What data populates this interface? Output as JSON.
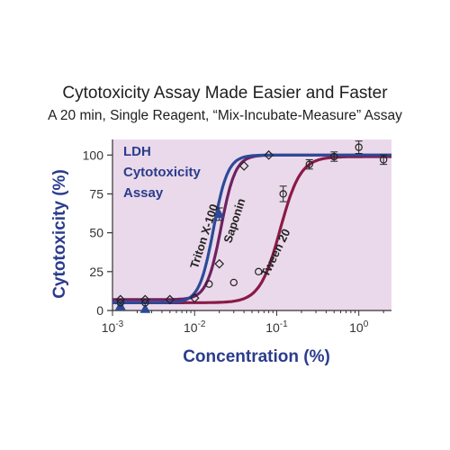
{
  "chart_data": {
    "type": "line",
    "title": "Cytotoxicity Assay Made Easier and Faster",
    "subtitle": "A 20 min, Single Reagent, “Mix-Incubate-Measure” Assay",
    "xlabel": "Concentration (%)",
    "ylabel": "Cytotoxicity (%)",
    "x_scale": "log",
    "xlim": [
      0.001,
      2.5
    ],
    "ylim": [
      0,
      110
    ],
    "x_ticks": [
      {
        "value": 0.001,
        "base": "10",
        "exp": "-3"
      },
      {
        "value": 0.01,
        "base": "10",
        "exp": "-2"
      },
      {
        "value": 0.1,
        "base": "10",
        "exp": "-1"
      },
      {
        "value": 1,
        "base": "10",
        "exp": "0"
      }
    ],
    "y_ticks": [
      {
        "value": 0,
        "label": "0"
      },
      {
        "value": 25,
        "label": "25"
      },
      {
        "value": 50,
        "label": "50"
      },
      {
        "value": 75,
        "label": "75"
      },
      {
        "value": 100,
        "label": "100"
      }
    ],
    "annotation_lines": [
      "LDH",
      "Cytotoxicity",
      "Assay"
    ],
    "background_color": "#ead9ea",
    "series": [
      {
        "name": "Triton X-100",
        "color": "#2b4a9a",
        "marker": "triangle",
        "fit": {
          "bottom": 5,
          "top": 100,
          "ec50": 0.017,
          "hill": 5
        },
        "points": [
          {
            "x": 0.00125,
            "y": 3
          },
          {
            "x": 0.0025,
            "y": 1
          },
          {
            "x": 0.02,
            "y": 62,
            "err": 4
          }
        ]
      },
      {
        "name": "Saponin",
        "color": "#6e2260",
        "marker": "diamond",
        "fit": {
          "bottom": 7,
          "top": 100,
          "ec50": 0.021,
          "hill": 5
        },
        "points": [
          {
            "x": 0.00125,
            "y": 7
          },
          {
            "x": 0.0025,
            "y": 7
          },
          {
            "x": 0.005,
            "y": 7
          },
          {
            "x": 0.01,
            "y": 8
          },
          {
            "x": 0.02,
            "y": 30
          },
          {
            "x": 0.04,
            "y": 93
          },
          {
            "x": 0.08,
            "y": 100
          }
        ]
      },
      {
        "name": "Tween 20",
        "color": "#8a1a48",
        "marker": "circle",
        "fit": {
          "bottom": 5,
          "top": 99,
          "ec50": 0.11,
          "hill": 3.5
        },
        "points": [
          {
            "x": 0.00125,
            "y": 5
          },
          {
            "x": 0.0025,
            "y": 5
          },
          {
            "x": 0.015,
            "y": 17
          },
          {
            "x": 0.03,
            "y": 18
          },
          {
            "x": 0.06,
            "y": 25
          },
          {
            "x": 0.12,
            "y": 75,
            "err": 5
          },
          {
            "x": 0.25,
            "y": 94,
            "err": 3
          },
          {
            "x": 0.5,
            "y": 99,
            "err": 3
          },
          {
            "x": 1,
            "y": 105,
            "err": 4
          },
          {
            "x": 2,
            "y": 97,
            "err": 3
          }
        ]
      }
    ]
  }
}
